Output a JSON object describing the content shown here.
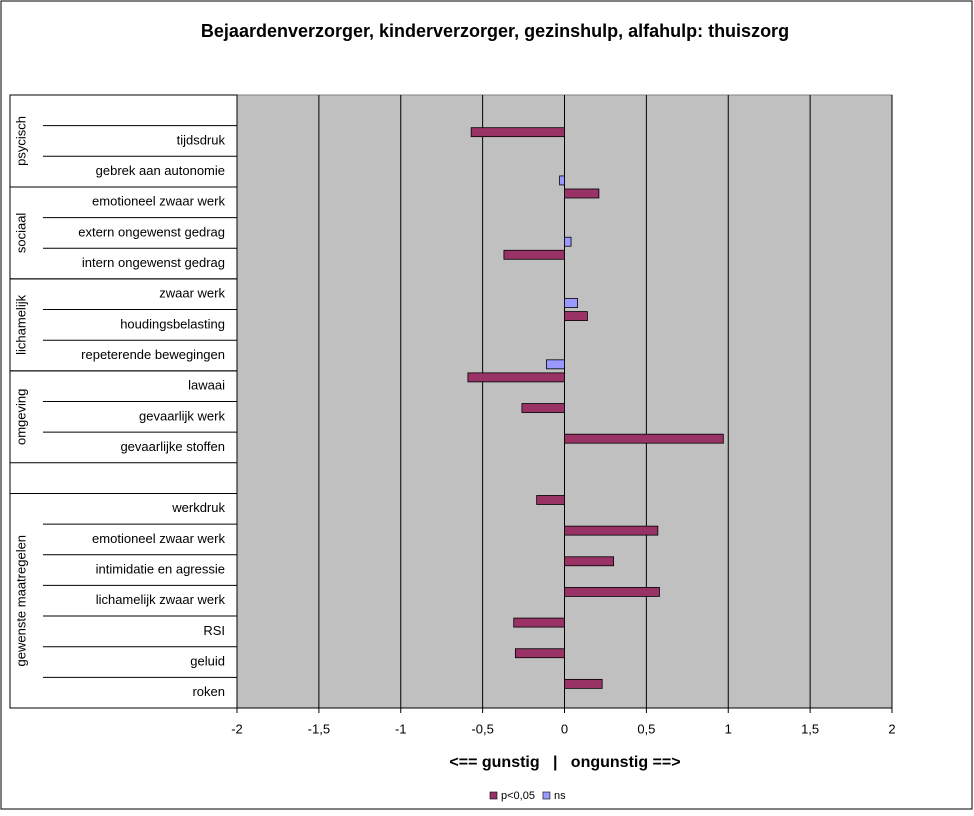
{
  "chart_data": {
    "type": "bar",
    "orientation": "horizontal",
    "title": "Bejaardenverzorger, kinderverzorger, gezinshulp, alfahulp: thuiszorg",
    "xlabel": "<== gunstig   |   ongunstig ==>",
    "categories": [
      null,
      "tijdsdruk",
      "gebrek aan autonomie",
      "emotioneel zwaar werk",
      "extern ongewenst gedrag",
      "intern ongewenst gedrag",
      "zwaar werk",
      "houdingsbelasting",
      "repeterende bewegingen",
      "lawaai",
      "gevaarlijk werk",
      "gevaarlijke stoffen",
      null,
      "werkdruk",
      "emotioneel zwaar werk",
      "intimidatie en agressie",
      "lichamelijk zwaar werk",
      "RSI",
      "geluid",
      "roken"
    ],
    "groups": [
      {
        "label": "psycisch",
        "start": 0,
        "end": 2
      },
      {
        "label": "sociaal",
        "start": 3,
        "end": 5
      },
      {
        "label": "lichamelijk",
        "start": 6,
        "end": 8
      },
      {
        "label": "omgeving",
        "start": 9,
        "end": 11
      },
      {
        "label": "gewenste maatregelen",
        "start": 13,
        "end": 19
      }
    ],
    "series": [
      {
        "name": "p<0,05",
        "color": "#993366",
        "values": [
          null,
          -0.57,
          null,
          0.21,
          null,
          -0.37,
          null,
          0.14,
          null,
          -0.59,
          -0.26,
          0.97,
          null,
          -0.17,
          0.57,
          0.3,
          0.58,
          -0.31,
          -0.3,
          0.23
        ]
      },
      {
        "name": "ns",
        "color": "#9999ff",
        "values": [
          null,
          null,
          -0.03,
          null,
          0.04,
          null,
          0.08,
          null,
          -0.11,
          null,
          null,
          null,
          null,
          null,
          null,
          null,
          null,
          null,
          null,
          null
        ]
      }
    ],
    "xlim": [
      -2,
      2
    ],
    "xticks": [
      -2,
      {
        "value": -1.5,
        "label": "-1,5"
      },
      -1,
      {
        "value": -0.5,
        "label": "-0,5"
      },
      0,
      {
        "value": 0.5,
        "label": "0,5"
      },
      1,
      {
        "value": 1.5,
        "label": "1,5"
      },
      2
    ],
    "grid": true,
    "legend": "bottom"
  }
}
